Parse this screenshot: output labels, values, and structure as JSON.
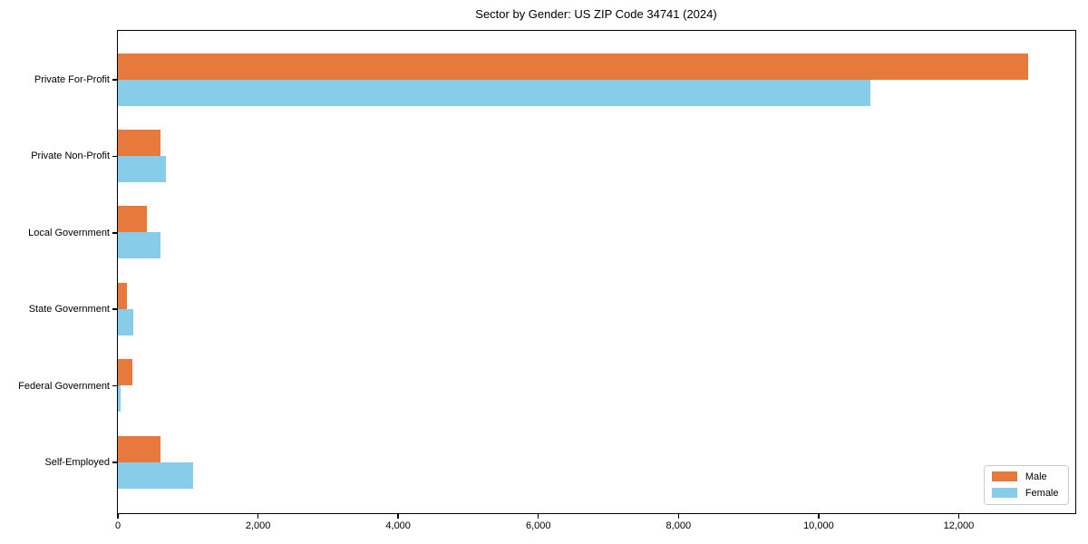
{
  "chart_data": {
    "type": "bar",
    "orientation": "horizontal",
    "title": "Sector by Gender: US ZIP Code 34741 (2024)",
    "categories": [
      "Private For-Profit",
      "Private Non-Profit",
      "Local Government",
      "State Government",
      "Federal Government",
      "Self-Employed"
    ],
    "series": [
      {
        "name": "Male",
        "color": "#E8793C",
        "values": [
          13000,
          620,
          420,
          140,
          215,
          610
        ]
      },
      {
        "name": "Female",
        "color": "#87CDEA",
        "values": [
          10750,
          690,
          620,
          230,
          50,
          1080
        ]
      }
    ],
    "xlabel": "",
    "ylabel": "",
    "xlim": [
      0,
      13650
    ],
    "xticks": [
      0,
      2000,
      4000,
      6000,
      8000,
      10000,
      12000
    ],
    "xtick_labels": [
      "0",
      "2,000",
      "4,000",
      "6,000",
      "8,000",
      "10,000",
      "12,000"
    ],
    "grid": false,
    "legend_position": "lower right",
    "background_color": "#ffffff",
    "spine_color": "#000000"
  }
}
